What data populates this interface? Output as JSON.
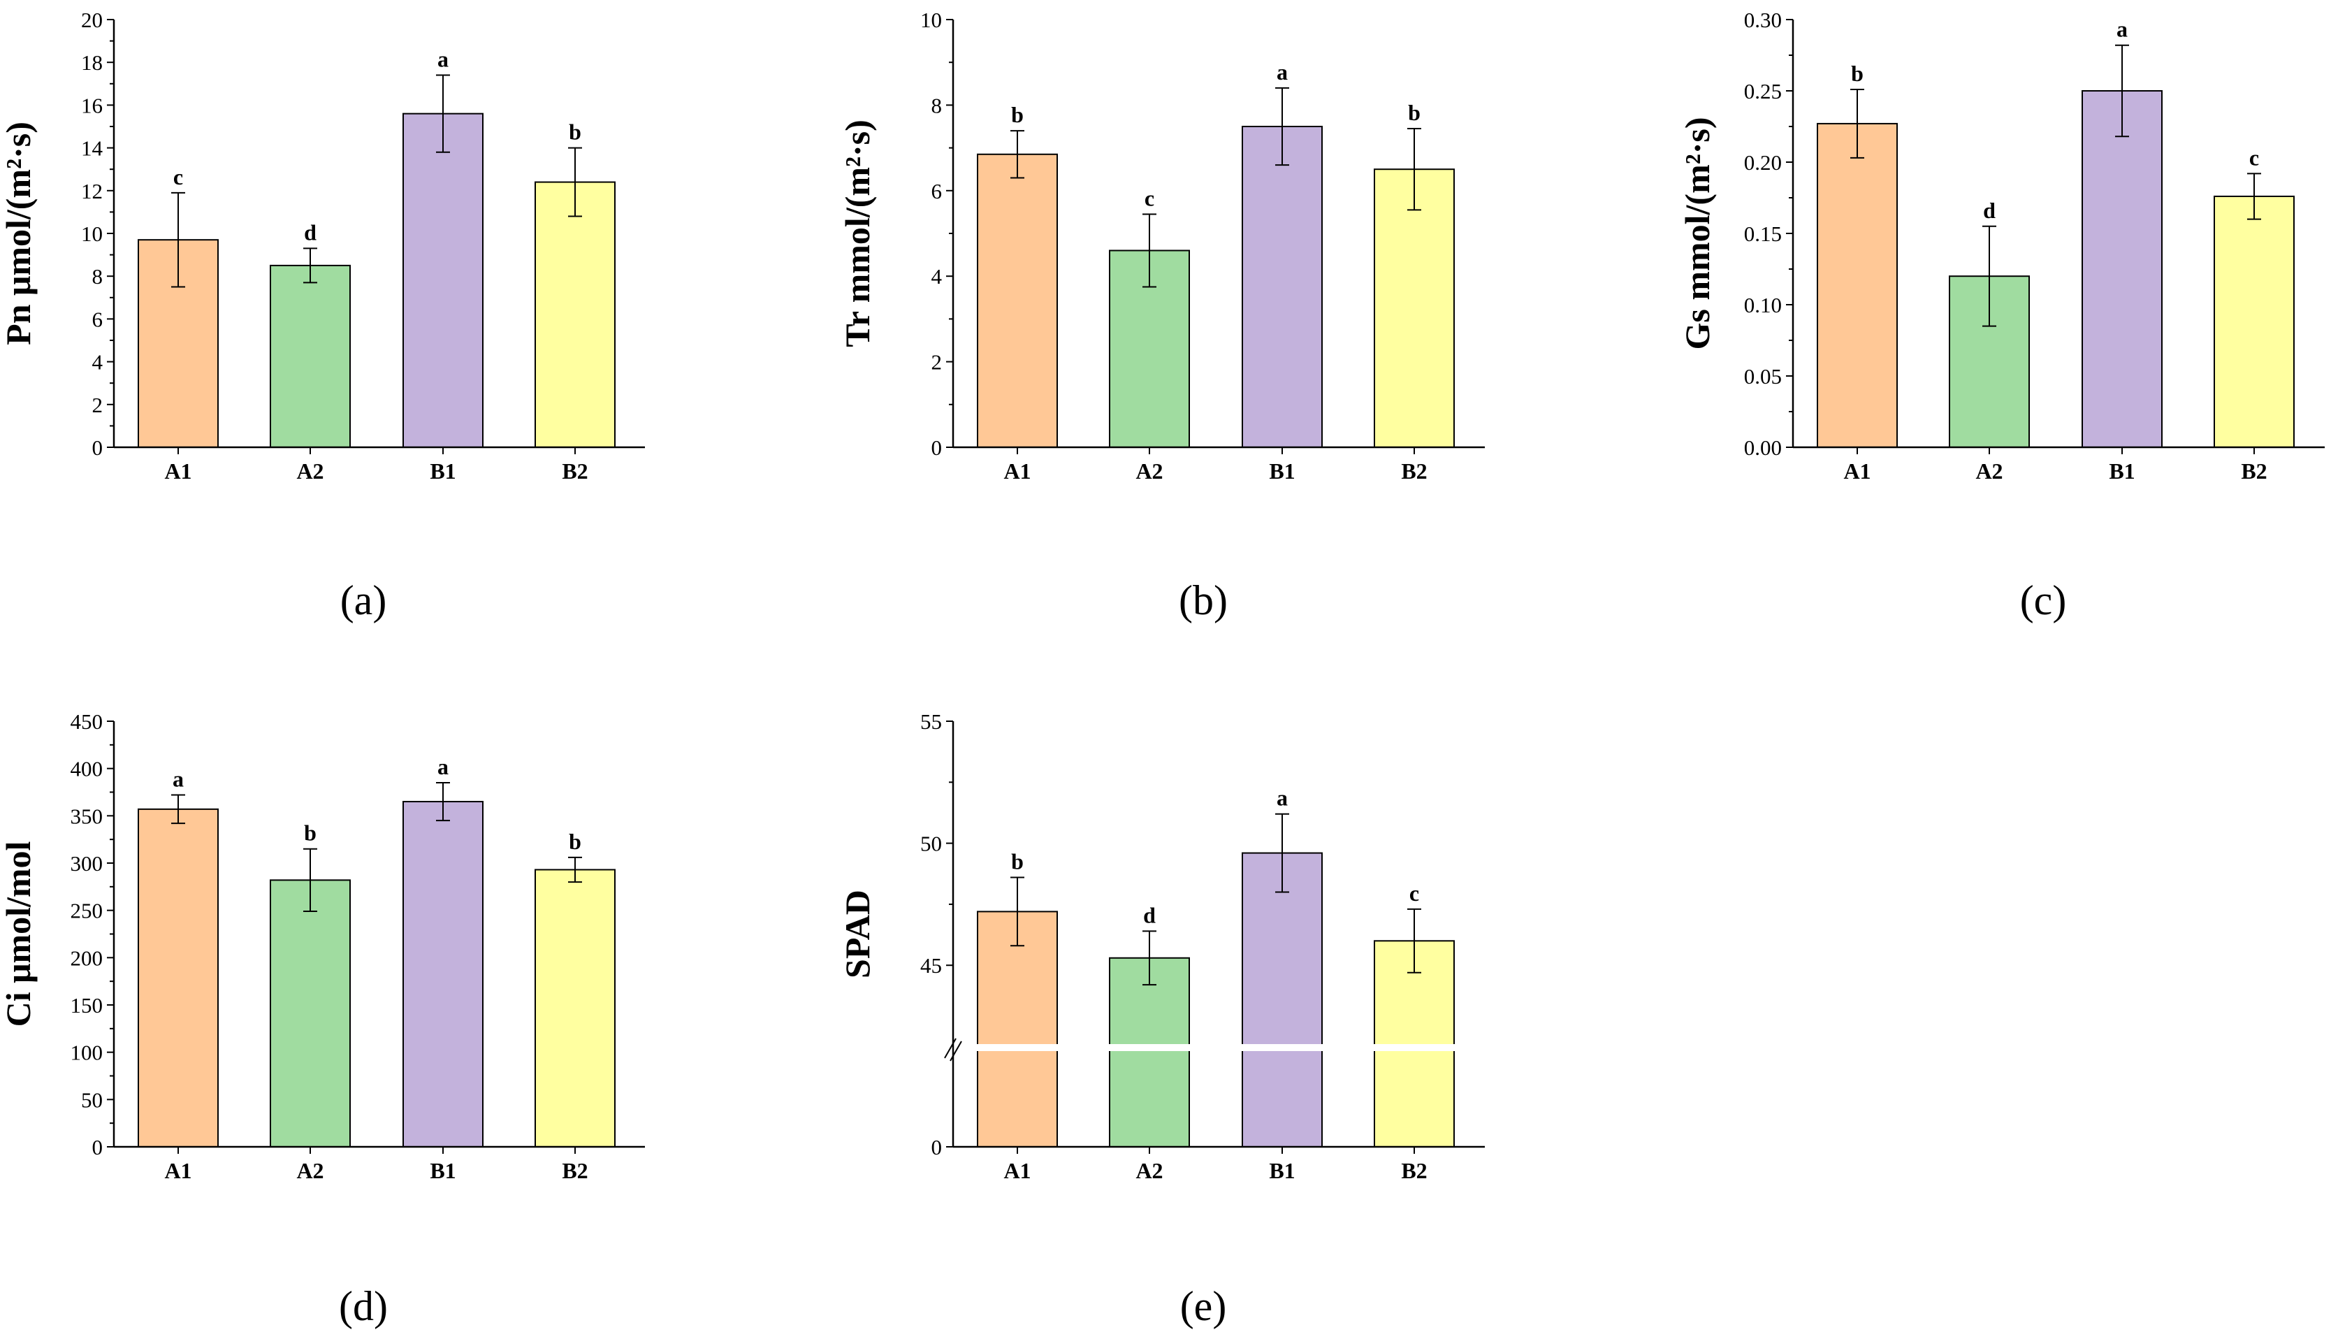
{
  "colors": {
    "A1": "#FFC896",
    "A2": "#A0DCA0",
    "B1": "#C3B2DC",
    "B2": "#FFFFA0",
    "axis": "#000000"
  },
  "chart_data": [
    {
      "type": "bar",
      "panel": "(a)",
      "ylabel": "Pn  μmol/(m²·s)",
      "categories": [
        "A1",
        "A2",
        "B1",
        "B2"
      ],
      "values": [
        9.7,
        8.5,
        15.6,
        12.4
      ],
      "errors": [
        2.2,
        0.8,
        1.8,
        1.6
      ],
      "letters": [
        "c",
        "d",
        "a",
        "b"
      ],
      "ylim": [
        0,
        20
      ],
      "yticks": [
        "0",
        "2",
        "4",
        "6",
        "8",
        "10",
        "12",
        "14",
        "16",
        "18",
        "20"
      ]
    },
    {
      "type": "bar",
      "panel": "(b)",
      "ylabel": "Tr  mmol/(m²·s)",
      "categories": [
        "A1",
        "A2",
        "B1",
        "B2"
      ],
      "values": [
        6.85,
        4.6,
        7.5,
        6.5
      ],
      "errors": [
        0.55,
        0.85,
        0.9,
        0.95
      ],
      "letters": [
        "b",
        "c",
        "a",
        "b"
      ],
      "ylim": [
        0,
        10
      ],
      "yticks": [
        "0",
        "2",
        "4",
        "6",
        "8",
        "10"
      ]
    },
    {
      "type": "bar",
      "panel": "(c)",
      "ylabel": "Gs  mmol/(m²·s)",
      "categories": [
        "A1",
        "A2",
        "B1",
        "B2"
      ],
      "values": [
        0.227,
        0.12,
        0.25,
        0.176
      ],
      "errors": [
        0.024,
        0.035,
        0.032,
        0.016
      ],
      "letters": [
        "b",
        "d",
        "a",
        "c"
      ],
      "ylim": [
        0,
        0.3
      ],
      "yticks": [
        "0.00",
        "0.05",
        "0.10",
        "0.15",
        "0.20",
        "0.25",
        "0.30"
      ]
    },
    {
      "type": "bar",
      "panel": "(d)",
      "ylabel": "Ci  μmol/mol",
      "categories": [
        "A1",
        "A2",
        "B1",
        "B2"
      ],
      "values": [
        357,
        282,
        365,
        293
      ],
      "errors": [
        15,
        33,
        20,
        13
      ],
      "letters": [
        "a",
        "b",
        "a",
        "b"
      ],
      "ylim": [
        0,
        450
      ],
      "yticks": [
        "0",
        "50",
        "100",
        "150",
        "200",
        "250",
        "300",
        "350",
        "400",
        "450"
      ]
    },
    {
      "type": "bar",
      "panel": "(e)",
      "ylabel": "SPAD",
      "categories": [
        "A1",
        "A2",
        "B1",
        "B2"
      ],
      "values": [
        47.2,
        45.3,
        49.6,
        46.0
      ],
      "errors": [
        1.4,
        1.1,
        1.6,
        1.3
      ],
      "letters": [
        "b",
        "d",
        "a",
        "c"
      ],
      "ylim": [
        0,
        55
      ],
      "broken_axis": true,
      "yticks": [
        "0",
        "45",
        "50",
        "55"
      ]
    }
  ]
}
